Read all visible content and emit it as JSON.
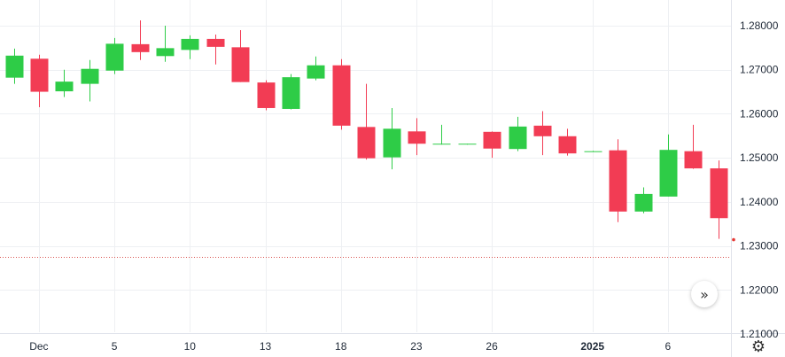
{
  "chart_data": {
    "type": "candlestick",
    "title": "",
    "xlabel": "",
    "ylabel": "",
    "ylim": [
      1.205,
      1.285
    ],
    "y_ticks": [
      "1.28000",
      "1.27000",
      "1.26000",
      "1.25000",
      "1.24000",
      "1.23000",
      "1.22000",
      "1.21000"
    ],
    "y_tick_values": [
      1.28,
      1.27,
      1.26,
      1.25,
      1.24,
      1.23,
      1.22,
      1.21
    ],
    "x_ticks": [
      {
        "label": "Dec",
        "index": 1,
        "bold": false
      },
      {
        "label": "5",
        "index": 4,
        "bold": false
      },
      {
        "label": "10",
        "index": 7,
        "bold": false
      },
      {
        "label": "13",
        "index": 10,
        "bold": false
      },
      {
        "label": "18",
        "index": 13,
        "bold": false
      },
      {
        "label": "23",
        "index": 16,
        "bold": false
      },
      {
        "label": "26",
        "index": 19,
        "bold": false
      },
      {
        "label": "2025",
        "index": 23,
        "bold": true
      },
      {
        "label": "6",
        "index": 26,
        "bold": false
      }
    ],
    "candles": [
      {
        "o": 1.2682,
        "h": 1.2748,
        "l": 1.2668,
        "c": 1.2732
      },
      {
        "o": 1.2725,
        "h": 1.2734,
        "l": 1.2615,
        "c": 1.265
      },
      {
        "o": 1.2651,
        "h": 1.27,
        "l": 1.2638,
        "c": 1.2673
      },
      {
        "o": 1.2668,
        "h": 1.2722,
        "l": 1.2628,
        "c": 1.2702
      },
      {
        "o": 1.2698,
        "h": 1.2772,
        "l": 1.269,
        "c": 1.2759
      },
      {
        "o": 1.2758,
        "h": 1.2812,
        "l": 1.2722,
        "c": 1.274
      },
      {
        "o": 1.2731,
        "h": 1.28,
        "l": 1.2718,
        "c": 1.2749
      },
      {
        "o": 1.2745,
        "h": 1.2778,
        "l": 1.2724,
        "c": 1.277
      },
      {
        "o": 1.277,
        "h": 1.278,
        "l": 1.2712,
        "c": 1.2752
      },
      {
        "o": 1.2751,
        "h": 1.279,
        "l": 1.2672,
        "c": 1.2672
      },
      {
        "o": 1.2671,
        "h": 1.2676,
        "l": 1.2608,
        "c": 1.2613
      },
      {
        "o": 1.2611,
        "h": 1.269,
        "l": 1.261,
        "c": 1.2683
      },
      {
        "o": 1.268,
        "h": 1.273,
        "l": 1.2676,
        "c": 1.271
      },
      {
        "o": 1.271,
        "h": 1.2724,
        "l": 1.2564,
        "c": 1.2573
      },
      {
        "o": 1.257,
        "h": 1.2668,
        "l": 1.2496,
        "c": 1.2499
      },
      {
        "o": 1.2501,
        "h": 1.2613,
        "l": 1.2474,
        "c": 1.2566
      },
      {
        "o": 1.256,
        "h": 1.259,
        "l": 1.2506,
        "c": 1.2532
      },
      {
        "o": 1.253,
        "h": 1.2575,
        "l": 1.253,
        "c": 1.2532
      },
      {
        "o": 1.2531,
        "h": 1.2532,
        "l": 1.253,
        "c": 1.2532
      },
      {
        "o": 1.2559,
        "h": 1.256,
        "l": 1.25,
        "c": 1.2521
      },
      {
        "o": 1.252,
        "h": 1.2593,
        "l": 1.2515,
        "c": 1.2571
      },
      {
        "o": 1.2573,
        "h": 1.2606,
        "l": 1.2506,
        "c": 1.2549
      },
      {
        "o": 1.2549,
        "h": 1.2566,
        "l": 1.2505,
        "c": 1.251
      },
      {
        "o": 1.2515,
        "h": 1.2516,
        "l": 1.2514,
        "c": 1.2515
      },
      {
        "o": 1.2517,
        "h": 1.2542,
        "l": 1.2354,
        "c": 1.2378
      },
      {
        "o": 1.2378,
        "h": 1.2433,
        "l": 1.2374,
        "c": 1.2418
      },
      {
        "o": 1.2412,
        "h": 1.2553,
        "l": 1.2412,
        "c": 1.2518
      },
      {
        "o": 1.2515,
        "h": 1.2575,
        "l": 1.2475,
        "c": 1.2476
      },
      {
        "o": 1.2476,
        "h": 1.2494,
        "l": 1.2316,
        "c": 1.2363
      }
    ],
    "current_price": 1.2314,
    "reference_line": 1.2274,
    "grid": true,
    "colors": {
      "up": "#2ecc47",
      "down": "#f23c54",
      "grid": "#eef0f3",
      "axis_border": "#e0e3eb",
      "ref_line": "#d9534f",
      "price_dot": "#e53935"
    }
  },
  "controls": {
    "scroll_icon": "double-chevron-right-icon",
    "settings_icon": "gear-icon"
  }
}
